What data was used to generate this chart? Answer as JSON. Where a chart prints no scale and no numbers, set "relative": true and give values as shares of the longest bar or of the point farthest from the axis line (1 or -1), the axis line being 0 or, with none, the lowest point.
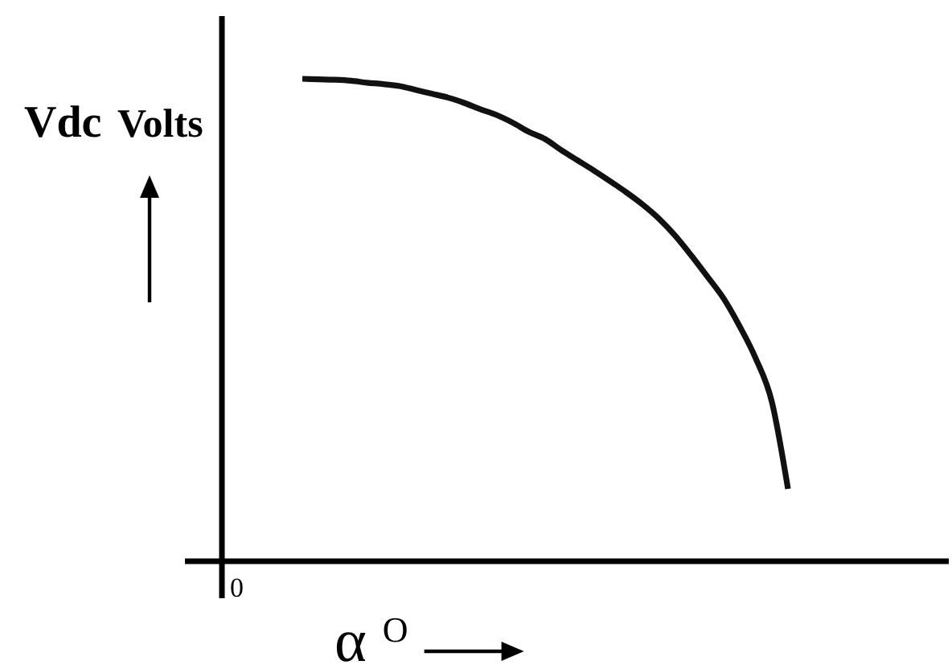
{
  "chart_data": {
    "type": "line",
    "xlabel": "α$^{O}$",
    "ylabel": "Vdc Volts",
    "relative": true,
    "color": "#111111",
    "categories": [
      null,
      null,
      null,
      null,
      null,
      null,
      null,
      null,
      null,
      null,
      null,
      null,
      null,
      null,
      null,
      null,
      null,
      null,
      null,
      null,
      null,
      null,
      null,
      null,
      null,
      null,
      null,
      null,
      null,
      null,
      null
    ],
    "values": [
      1,
      0.999,
      0.998,
      0.996,
      0.992,
      0.989,
      0.985,
      0.977,
      0.969,
      0.961,
      0.95,
      0.937,
      0.925,
      0.909,
      0.89,
      0.875,
      0.852,
      0.831,
      0.81,
      0.788,
      0.765,
      0.74,
      0.711,
      0.676,
      0.635,
      0.591,
      0.546,
      0.488,
      0.421,
      0.331,
      0.15
    ],
    "annotations": [
      "0"
    ]
  }
}
